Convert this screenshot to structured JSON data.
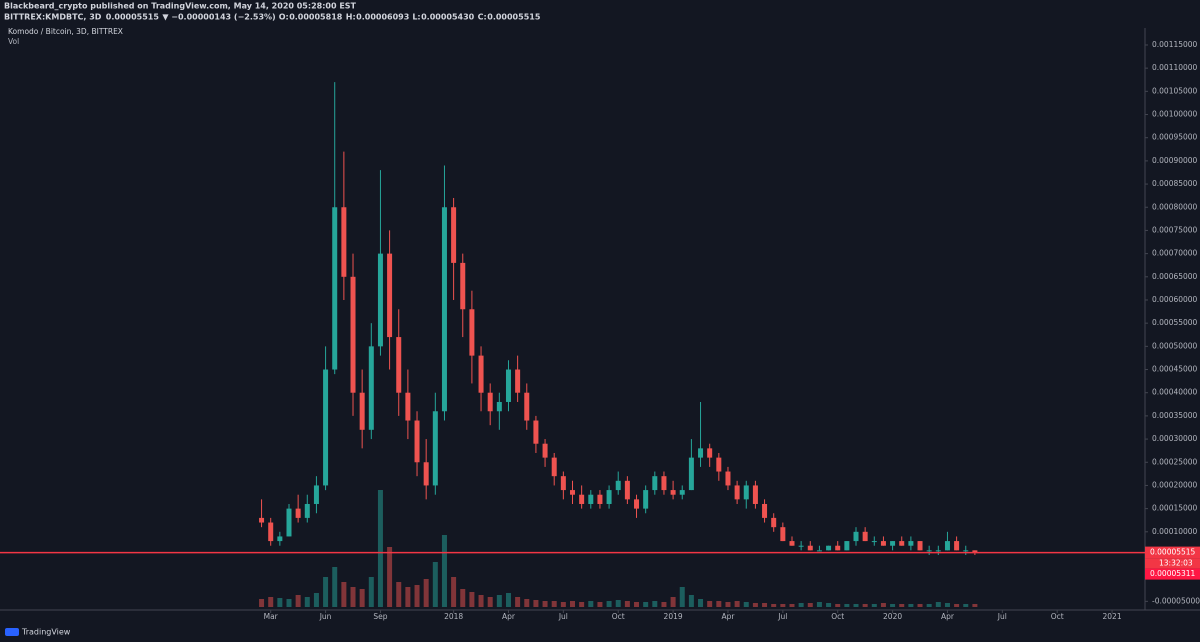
{
  "header": {
    "publisher": "Blackbeard_crypto published on TradingView.com, May 14, 2020 05:28:00 EST",
    "symbol": "BITTREX:KMDBTC, 3D",
    "price": "0.00005515",
    "change": "▼ −0.00000143 (−2.53%)",
    "ohlc": [
      {
        "key": "O:",
        "value": "0.00005818"
      },
      {
        "key": "H:",
        "value": "0.00006093"
      },
      {
        "key": "L:",
        "value": "0.00005430"
      },
      {
        "key": "C:",
        "value": "0.00005515"
      }
    ]
  },
  "chart_data": {
    "type": "candlestick",
    "title": "Komodo / Bitcoin, 3D, BITTREX",
    "subtitle": "Vol",
    "up_color": "#26a69a",
    "down_color": "#ef5350",
    "x": [
      -0.5,
      0,
      0.5,
      1,
      1.5,
      2,
      2.5,
      3,
      3.5,
      4,
      4.5,
      5,
      5.5,
      6,
      6.5,
      7,
      7.5,
      8,
      8.5,
      9,
      9.5,
      10,
      10.5,
      11,
      11.5,
      12,
      12.5,
      13,
      13.5,
      14,
      14.5,
      15,
      15.5,
      16,
      16.5,
      17,
      17.5,
      18,
      18.5,
      19,
      19.5,
      20,
      20.5,
      21,
      21.5,
      22,
      22.5,
      23,
      23.5,
      24,
      24.5,
      25,
      25.5,
      26,
      26.5,
      27,
      27.5,
      28,
      28.5,
      29,
      29.5,
      30,
      30.5,
      31,
      31.5,
      32,
      32.5,
      33,
      33.5,
      34,
      34.5,
      35,
      35.5,
      36,
      36.5,
      37,
      37.5,
      38,
      38.5
    ],
    "open": [
      0.00013,
      0.00012,
      8e-05,
      9e-05,
      0.00015,
      0.00013,
      0.00016,
      0.0002,
      0.00045,
      0.0008,
      0.00065,
      0.0004,
      0.00032,
      0.0005,
      0.0007,
      0.00052,
      0.0004,
      0.00034,
      0.00025,
      0.0002,
      0.00036,
      0.0008,
      0.00068,
      0.00058,
      0.00048,
      0.0004,
      0.00036,
      0.00038,
      0.00045,
      0.0004,
      0.00034,
      0.00029,
      0.00026,
      0.00022,
      0.00019,
      0.00018,
      0.00016,
      0.00018,
      0.00016,
      0.00019,
      0.00021,
      0.00017,
      0.00015,
      0.00019,
      0.00022,
      0.00019,
      0.00018,
      0.00019,
      0.00026,
      0.00028,
      0.00026,
      0.00023,
      0.0002,
      0.00017,
      0.0002,
      0.00016,
      0.00013,
      0.00011,
      8e-05,
      7e-05,
      7e-05,
      6e-05,
      6e-05,
      7e-05,
      6e-05,
      8e-05,
      0.0001,
      8e-05,
      8e-05,
      7e-05,
      8e-05,
      7e-05,
      8e-05,
      6e-05,
      6e-05,
      6e-05,
      8e-05,
      6e-05,
      6e-05
    ],
    "high": [
      0.00017,
      0.00013,
      0.0001,
      0.00016,
      0.00018,
      0.00018,
      0.00022,
      0.0005,
      0.00107,
      0.00092,
      0.0007,
      0.00045,
      0.00055,
      0.00088,
      0.00075,
      0.00058,
      0.00045,
      0.00036,
      0.0003,
      0.0004,
      0.00089,
      0.00082,
      0.0007,
      0.00062,
      0.0005,
      0.00042,
      0.0004,
      0.00047,
      0.00048,
      0.00042,
      0.00035,
      0.0003,
      0.00027,
      0.00023,
      0.00021,
      0.0002,
      0.00019,
      0.00019,
      0.0002,
      0.00023,
      0.00022,
      0.00018,
      0.0002,
      0.00023,
      0.00023,
      0.00021,
      0.0002,
      0.0003,
      0.00038,
      0.00029,
      0.00027,
      0.00024,
      0.00021,
      0.00021,
      0.00021,
      0.00017,
      0.00014,
      0.00012,
      9e-05,
      8e-05,
      8e-05,
      7e-05,
      7e-05,
      8e-05,
      8e-05,
      0.00011,
      0.00011,
      9e-05,
      9e-05,
      8e-05,
      9e-05,
      9e-05,
      8e-05,
      7e-05,
      7e-05,
      0.0001,
      9e-05,
      7e-05,
      6e-05
    ],
    "low": [
      0.00011,
      7e-05,
      7e-05,
      9e-05,
      0.00012,
      0.00012,
      0.00014,
      0.00019,
      0.00044,
      0.0006,
      0.00035,
      0.00028,
      0.0003,
      0.00048,
      0.00045,
      0.00035,
      0.0003,
      0.00022,
      0.00017,
      0.00018,
      0.00034,
      0.0006,
      0.00052,
      0.00042,
      0.00036,
      0.00033,
      0.00032,
      0.00036,
      0.00038,
      0.00032,
      0.00027,
      0.00024,
      0.0002,
      0.00017,
      0.00016,
      0.00015,
      0.00015,
      0.00015,
      0.00015,
      0.00018,
      0.00016,
      0.00013,
      0.00014,
      0.00018,
      0.00018,
      0.00017,
      0.00017,
      0.00019,
      0.00024,
      0.00024,
      0.00021,
      0.00019,
      0.00016,
      0.00015,
      0.00015,
      0.00012,
      0.0001,
      8e-05,
      7e-05,
      6e-05,
      6e-05,
      6e-05,
      6e-05,
      6e-05,
      6e-05,
      7e-05,
      8e-05,
      7e-05,
      7e-05,
      6e-05,
      7e-05,
      6e-05,
      6e-05,
      5e-05,
      5e-05,
      6e-05,
      6e-05,
      5e-05,
      5e-05
    ],
    "close": [
      0.00012,
      8e-05,
      9e-05,
      0.00015,
      0.00013,
      0.00016,
      0.0002,
      0.00045,
      0.0008,
      0.00065,
      0.0004,
      0.00032,
      0.0005,
      0.0007,
      0.00052,
      0.0004,
      0.00034,
      0.00025,
      0.0002,
      0.00036,
      0.0008,
      0.00068,
      0.00058,
      0.00048,
      0.0004,
      0.00036,
      0.00038,
      0.00045,
      0.0004,
      0.00034,
      0.00029,
      0.00026,
      0.00022,
      0.00019,
      0.00018,
      0.00016,
      0.00018,
      0.00016,
      0.00019,
      0.00021,
      0.00017,
      0.00015,
      0.00019,
      0.00022,
      0.00019,
      0.00018,
      0.00019,
      0.00026,
      0.00028,
      0.00026,
      0.00023,
      0.0002,
      0.00017,
      0.0002,
      0.00016,
      0.00013,
      0.00011,
      8e-05,
      7e-05,
      7e-05,
      6e-05,
      6e-05,
      7e-05,
      6e-05,
      8e-05,
      0.0001,
      8e-05,
      8e-05,
      7e-05,
      8e-05,
      7e-05,
      8e-05,
      6e-05,
      6e-05,
      6e-05,
      8e-05,
      6e-05,
      6e-05,
      5.515e-05
    ],
    "volume": [
      8,
      10,
      9,
      8,
      12,
      10,
      14,
      30,
      40,
      25,
      20,
      18,
      30,
      117,
      60,
      25,
      20,
      22,
      28,
      45,
      72,
      30,
      18,
      15,
      12,
      10,
      12,
      14,
      10,
      8,
      7,
      6,
      6,
      5,
      6,
      5,
      6,
      5,
      6,
      7,
      6,
      5,
      5,
      6,
      5,
      10,
      20,
      12,
      8,
      6,
      6,
      5,
      6,
      5,
      4,
      4,
      3,
      3,
      3,
      4,
      4,
      5,
      4,
      3,
      3,
      3,
      3,
      3,
      4,
      3,
      3,
      3,
      3,
      3,
      5,
      4,
      3,
      3,
      3
    ],
    "xlim": [
      -14.8,
      47.8
    ],
    "xticks": [
      {
        "value": 0,
        "label": "Mar"
      },
      {
        "value": 3,
        "label": "Jun"
      },
      {
        "value": 6,
        "label": "Sep"
      },
      {
        "value": 10,
        "label": "2018"
      },
      {
        "value": 13,
        "label": "Apr"
      },
      {
        "value": 16,
        "label": "Jul"
      },
      {
        "value": 19,
        "label": "Oct"
      },
      {
        "value": 22,
        "label": "2019"
      },
      {
        "value": 25,
        "label": "Apr"
      },
      {
        "value": 28,
        "label": "Jul"
      },
      {
        "value": 31,
        "label": "Oct"
      },
      {
        "value": 34,
        "label": "2020"
      },
      {
        "value": 37,
        "label": "Apr"
      },
      {
        "value": 40,
        "label": "Jul"
      },
      {
        "value": 43,
        "label": "Oct"
      },
      {
        "value": 46,
        "label": "2021"
      }
    ],
    "ylim": [
      -0.000101,
      0.001247
    ],
    "yticks": [
      {
        "value": 0.00115,
        "label": "0.00115000"
      },
      {
        "value": 0.0011,
        "label": "0.00110000"
      },
      {
        "value": 0.00105,
        "label": "0.00105000"
      },
      {
        "value": 0.001,
        "label": "0.00100000"
      },
      {
        "value": 0.00095,
        "label": "0.00095000"
      },
      {
        "value": 0.0009,
        "label": "0.00090000"
      },
      {
        "value": 0.00085,
        "label": "0.00085000"
      },
      {
        "value": 0.0008,
        "label": "0.00080000"
      },
      {
        "value": 0.00075,
        "label": "0.00075000"
      },
      {
        "value": 0.0007,
        "label": "0.00070000"
      },
      {
        "value": 0.00065,
        "label": "0.00065000"
      },
      {
        "value": 0.0006,
        "label": "0.00060000"
      },
      {
        "value": 0.00055,
        "label": "0.00055000"
      },
      {
        "value": 0.0005,
        "label": "0.00050000"
      },
      {
        "value": 0.00045,
        "label": "0.00045000"
      },
      {
        "value": 0.0004,
        "label": "0.00040000"
      },
      {
        "value": 0.00035,
        "label": "0.00035000"
      },
      {
        "value": 0.0003,
        "label": "0.00030000"
      },
      {
        "value": 0.00025,
        "label": "0.00025000"
      },
      {
        "value": 0.0002,
        "label": "0.00020000"
      },
      {
        "value": 0.00015,
        "label": "0.00015000"
      },
      {
        "value": 0.0001,
        "label": "0.00010000"
      },
      {
        "value": -5e-05,
        "label": "-0.00005000"
      }
    ],
    "last_price": {
      "value": 5.515e-05,
      "label": "0.00005515"
    },
    "countdown": "13:32:03",
    "previous_price": {
      "value": 5.311e-05,
      "label": "0.00005311"
    }
  },
  "footer": {
    "brand": "TradingView"
  }
}
